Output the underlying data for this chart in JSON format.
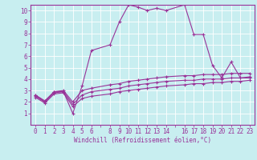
{
  "xlabel": "Windchill (Refroidissement éolien,°C)",
  "background_color": "#c8eef0",
  "line_color": "#993399",
  "grid_color": "#ffffff",
  "xlim": [
    -0.5,
    23.5
  ],
  "ylim": [
    0,
    10.5
  ],
  "xtick_positions": [
    0,
    1,
    2,
    3,
    4,
    5,
    6,
    7,
    8,
    9,
    10,
    11,
    12,
    13,
    14,
    15,
    16,
    17,
    18,
    19,
    20,
    21,
    22,
    23
  ],
  "xtick_labels": [
    "0",
    "1",
    "2",
    "3",
    "4",
    "5",
    "6",
    "",
    "8",
    "9",
    "10",
    "11",
    "12",
    "13",
    "14",
    "",
    "16",
    "17",
    "18",
    "19",
    "20",
    "21",
    "22",
    "23"
  ],
  "yticks": [
    1,
    2,
    3,
    4,
    5,
    6,
    7,
    8,
    9,
    10
  ],
  "line1_x": [
    0,
    1,
    2,
    3,
    4,
    5,
    6,
    8,
    9,
    10,
    11,
    12,
    13,
    14,
    16,
    17,
    18,
    19,
    20,
    21,
    22,
    23
  ],
  "line1_y": [
    2.6,
    2.0,
    2.9,
    2.9,
    1.0,
    3.4,
    6.5,
    7.0,
    9.0,
    10.5,
    10.3,
    10.0,
    10.2,
    10.0,
    10.5,
    7.9,
    7.9,
    5.2,
    4.1,
    5.5,
    4.1,
    4.1
  ],
  "line2_x": [
    0,
    1,
    2,
    3,
    4,
    5,
    6,
    8,
    9,
    10,
    11,
    12,
    13,
    14,
    16,
    17,
    18,
    19,
    20,
    21,
    22,
    23
  ],
  "line2_y": [
    2.6,
    2.1,
    2.9,
    3.0,
    2.0,
    3.0,
    3.2,
    3.5,
    3.6,
    3.8,
    3.9,
    4.0,
    4.1,
    4.2,
    4.3,
    4.3,
    4.4,
    4.4,
    4.4,
    4.5,
    4.5,
    4.5
  ],
  "line3_x": [
    0,
    1,
    2,
    3,
    4,
    5,
    6,
    8,
    9,
    10,
    11,
    12,
    13,
    14,
    16,
    17,
    18,
    19,
    20,
    21,
    22,
    23
  ],
  "line3_y": [
    2.5,
    2.0,
    2.8,
    2.9,
    1.8,
    2.6,
    2.9,
    3.1,
    3.2,
    3.4,
    3.5,
    3.6,
    3.7,
    3.8,
    3.9,
    3.9,
    4.0,
    4.0,
    4.0,
    4.1,
    4.1,
    4.2
  ],
  "line4_x": [
    0,
    1,
    2,
    3,
    4,
    5,
    6,
    8,
    9,
    10,
    11,
    12,
    13,
    14,
    16,
    17,
    18,
    19,
    20,
    21,
    22,
    23
  ],
  "line4_y": [
    2.4,
    1.9,
    2.7,
    2.8,
    1.6,
    2.3,
    2.5,
    2.7,
    2.9,
    3.0,
    3.1,
    3.2,
    3.3,
    3.4,
    3.5,
    3.6,
    3.6,
    3.7,
    3.7,
    3.8,
    3.8,
    3.9
  ],
  "label_fontsize": 5.5,
  "tick_fontsize": 5.5,
  "linewidth": 0.8,
  "markersize": 3
}
